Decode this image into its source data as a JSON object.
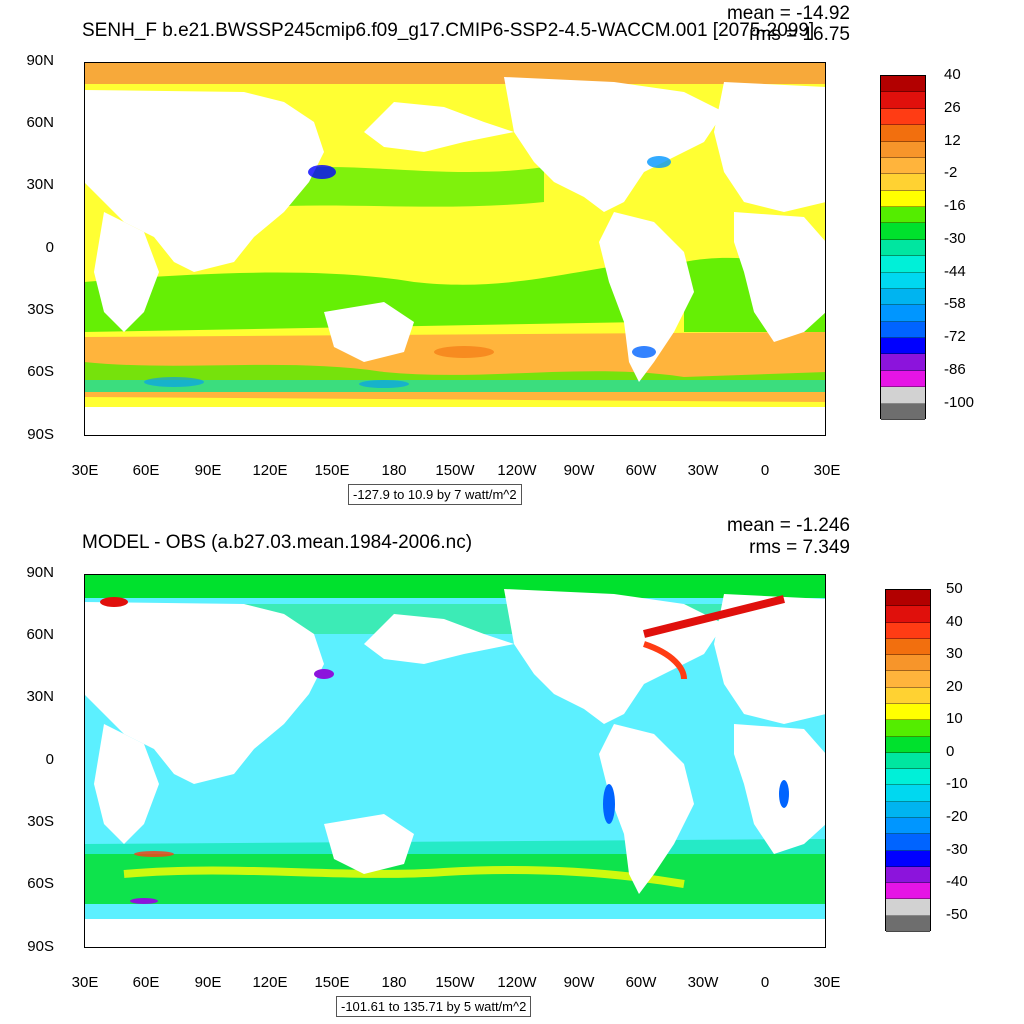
{
  "chart_data": [
    {
      "type": "heatmap",
      "title": "SENH_F b.e21.BWSSP245cmip6.f09_g17.CMIP6-SSP2-4.5-WACCM.001 [2075-2099]",
      "mean_label": "mean = -14.92",
      "rms_label": "rms = 16.75",
      "lat_ticks": [
        "90N",
        "60N",
        "30N",
        "0",
        "30S",
        "60S",
        "90S"
      ],
      "lon_ticks": [
        "30E",
        "60E",
        "90E",
        "120E",
        "150E",
        "180",
        "150W",
        "120W",
        "90W",
        "60W",
        "30W",
        "0",
        "30E"
      ],
      "range_label": "-127.9 to 10.9 by 7 watt/m^2",
      "colorbar_labels": [
        "40",
        "26",
        "12",
        "-2",
        "-16",
        "-30",
        "-44",
        "-58",
        "-72",
        "-86",
        "-100"
      ],
      "colorbar_colors": [
        "#b20000",
        "#e0100c",
        "#ff3c14",
        "#f26f0e",
        "#f7952a",
        "#ffb43c",
        "#ffd232",
        "#ffff00",
        "#54ed00",
        "#00e12d",
        "#00e6a0",
        "#00f0d8",
        "#00d8f0",
        "#00b4f0",
        "#0096ff",
        "#0064ff",
        "#0000ff",
        "#8c14dc",
        "#e614e6",
        "#d2d2d2",
        "#6e6e6e"
      ]
    },
    {
      "type": "heatmap",
      "title": "MODEL - OBS (a.b27.03.mean.1984-2006.nc)",
      "mean_label": "mean = -1.246",
      "rms_label": "rms = 7.349",
      "lat_ticks": [
        "90N",
        "60N",
        "30N",
        "0",
        "30S",
        "60S",
        "90S"
      ],
      "lon_ticks": [
        "30E",
        "60E",
        "90E",
        "120E",
        "150E",
        "180",
        "150W",
        "120W",
        "90W",
        "60W",
        "30W",
        "0",
        "30E"
      ],
      "range_label": "-101.61 to 135.71 by 5 watt/m^2",
      "colorbar_labels": [
        "50",
        "40",
        "30",
        "20",
        "10",
        "0",
        "-10",
        "-20",
        "-30",
        "-40",
        "-50"
      ],
      "colorbar_colors": [
        "#b20000",
        "#e0100c",
        "#ff3c14",
        "#f26f0e",
        "#f7952a",
        "#ffb43c",
        "#ffd232",
        "#ffff00",
        "#54ed00",
        "#00e12d",
        "#00e6a0",
        "#00f0d8",
        "#00d8f0",
        "#00b4f0",
        "#0096ff",
        "#0064ff",
        "#0000ff",
        "#8c14dc",
        "#e614e6",
        "#d2d2d2",
        "#6e6e6e"
      ]
    }
  ]
}
